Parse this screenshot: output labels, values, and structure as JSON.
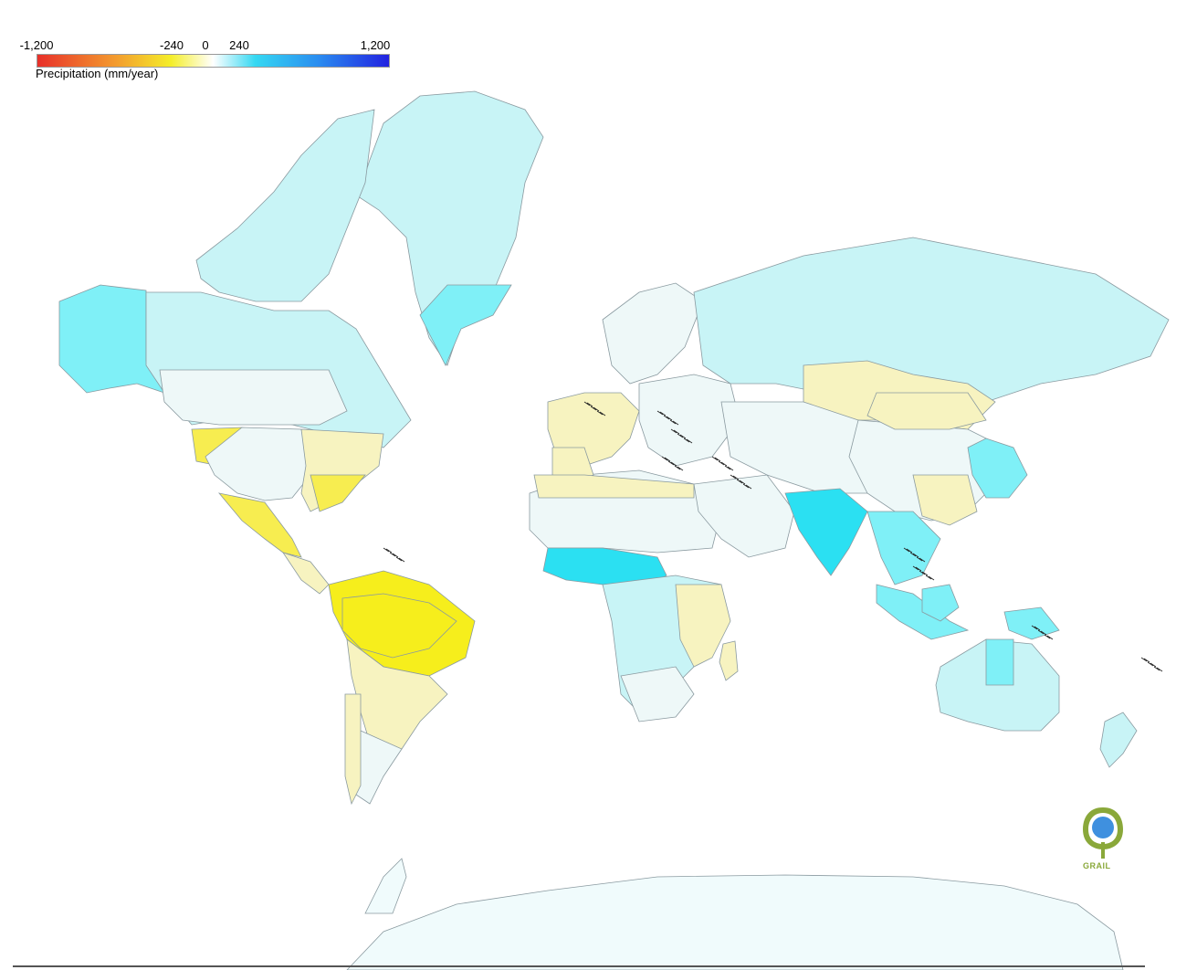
{
  "legend": {
    "title": "Precipitation (mm/year)",
    "ticks": [
      "-1,200",
      "-240",
      "0",
      "240",
      "1,200"
    ],
    "colors": [
      "#e8302a",
      "#f39a2e",
      "#f4ee2a",
      "#ffffff",
      "#35d8f2",
      "#2a8cf0",
      "#2222e0"
    ]
  },
  "palette": {
    "ocean": "#ffffff",
    "border": "#8a9aa0",
    "dense_border": "#222222",
    "light_cyan": "#c8f4f6",
    "cyan": "#7ff0f7",
    "strong_cyan": "#2be0f2",
    "very_light": "#eef8f8",
    "pale_yellow": "#f7f3c0",
    "yellow": "#f7ed50",
    "bright_yellow": "#f6ee1c",
    "antarctica": "#f0fbfc"
  },
  "logo": {
    "text": "GRAIL",
    "colors": [
      "#8aa83a",
      "#3f90df"
    ]
  }
}
